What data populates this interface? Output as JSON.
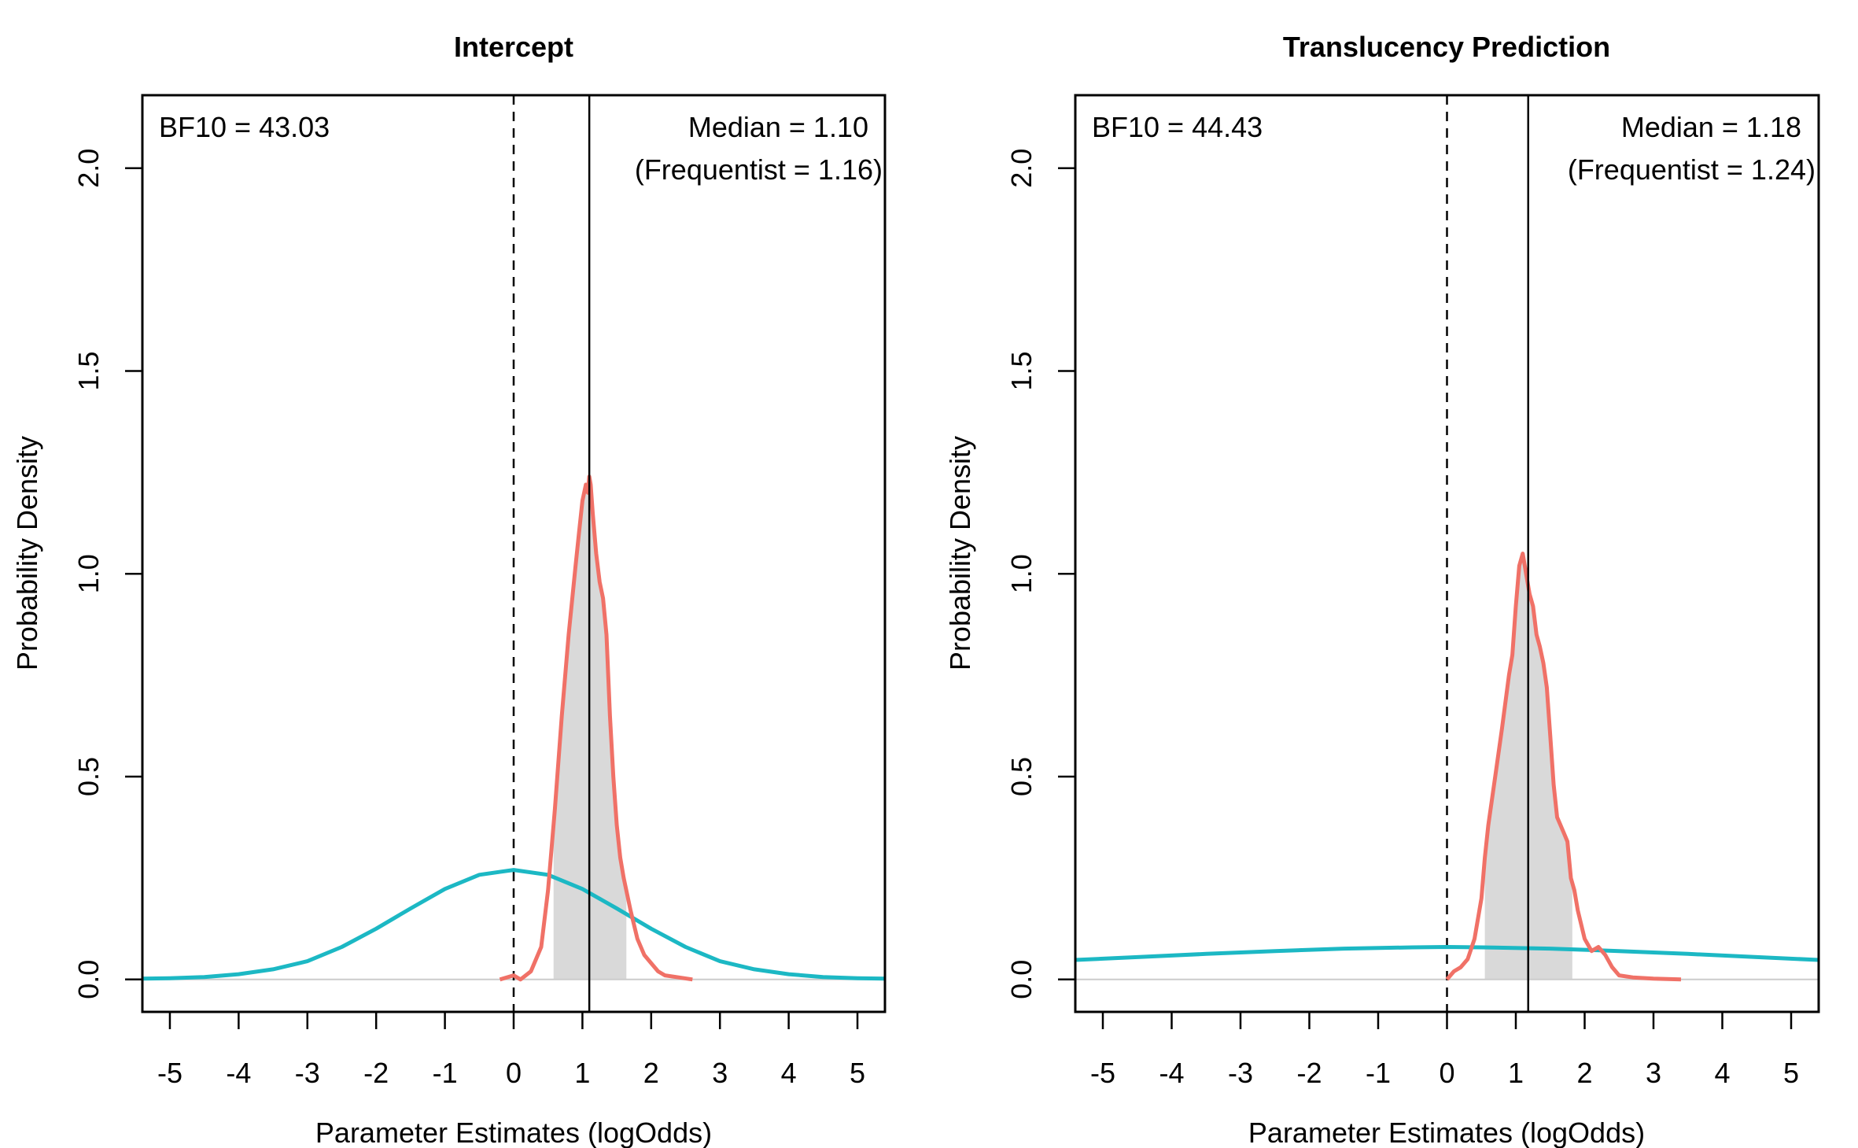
{
  "chart_data": [
    {
      "type": "line",
      "title": "Intercept",
      "xlabel": "Parameter Estimates (logOdds)",
      "ylabel": "Probability Density",
      "xlim": [
        -5.4,
        5.4
      ],
      "ylim": [
        -0.08,
        2.18
      ],
      "x_ticks": [
        -5,
        -4,
        -3,
        -2,
        -1,
        0,
        1,
        2,
        3,
        4,
        5
      ],
      "x_tick_labels": [
        "-5",
        "-4",
        "-3",
        "-2",
        "-1",
        "0",
        "1",
        "2",
        "3",
        "4",
        "5"
      ],
      "y_ticks": [
        0,
        0.5,
        1,
        1.5,
        2
      ],
      "y_tick_labels": [
        "0.0",
        "0.5",
        "1.0",
        "1.5",
        "2.0"
      ],
      "grid": false,
      "bf_label": "BF10 = 43.03",
      "median_label": "Median = 1.10",
      "frequentist_label": "(Frequentist = 1.16)",
      "median": 1.1,
      "reference_line": 0,
      "interval": [
        0.58,
        1.64
      ],
      "colors": {
        "posterior": "#F07167",
        "prior": "#1CB8C4",
        "interval_fill": "#D9D9D9"
      },
      "series": [
        {
          "role": "prior",
          "x": [
            -5.4,
            -5.0,
            -4.5,
            -4.0,
            -3.5,
            -3.0,
            -2.5,
            -2.0,
            -1.5,
            -1.0,
            -0.5,
            0.0,
            0.5,
            1.0,
            1.5,
            2.0,
            2.5,
            3.0,
            3.5,
            4.0,
            4.5,
            5.0,
            5.4
          ],
          "y": [
            0.002,
            0.003,
            0.006,
            0.013,
            0.025,
            0.045,
            0.08,
            0.125,
            0.175,
            0.223,
            0.258,
            0.27,
            0.258,
            0.223,
            0.175,
            0.125,
            0.08,
            0.045,
            0.025,
            0.013,
            0.006,
            0.003,
            0.002
          ]
        },
        {
          "role": "posterior",
          "x": [
            -0.2,
            0.0,
            0.1,
            0.25,
            0.4,
            0.5,
            0.6,
            0.7,
            0.8,
            0.9,
            0.95,
            1.0,
            1.05,
            1.08,
            1.1,
            1.12,
            1.15,
            1.2,
            1.25,
            1.3,
            1.35,
            1.4,
            1.45,
            1.5,
            1.55,
            1.6,
            1.7,
            1.8,
            1.9,
            2.0,
            2.1,
            2.2,
            2.4,
            2.6
          ],
          "y": [
            0.0,
            0.01,
            0.0,
            0.02,
            0.08,
            0.22,
            0.42,
            0.65,
            0.85,
            1.02,
            1.1,
            1.18,
            1.22,
            1.2,
            1.24,
            1.22,
            1.15,
            1.05,
            0.98,
            0.94,
            0.85,
            0.65,
            0.5,
            0.38,
            0.3,
            0.25,
            0.17,
            0.1,
            0.06,
            0.04,
            0.02,
            0.01,
            0.005,
            0.0
          ]
        }
      ]
    },
    {
      "type": "line",
      "title": "Translucency Prediction",
      "xlabel": "Parameter Estimates (logOdds)",
      "ylabel": "Probability Density",
      "xlim": [
        -5.4,
        5.4
      ],
      "ylim": [
        -0.08,
        2.18
      ],
      "x_ticks": [
        -5,
        -4,
        -3,
        -2,
        -1,
        0,
        1,
        2,
        3,
        4,
        5
      ],
      "x_tick_labels": [
        "-5",
        "-4",
        "-3",
        "-2",
        "-1",
        "0",
        "1",
        "2",
        "3",
        "4",
        "5"
      ],
      "y_ticks": [
        0,
        0.5,
        1,
        1.5,
        2
      ],
      "y_tick_labels": [
        "0.0",
        "0.5",
        "1.0",
        "1.5",
        "2.0"
      ],
      "grid": false,
      "bf_label": "BF10 = 44.43",
      "median_label": "Median = 1.18",
      "frequentist_label": "(Frequentist = 1.24)",
      "median": 1.18,
      "reference_line": 0,
      "interval": [
        0.55,
        1.82
      ],
      "colors": {
        "posterior": "#F07167",
        "prior": "#1CB8C4",
        "interval_fill": "#D9D9D9"
      },
      "series": [
        {
          "role": "prior",
          "x": [
            -5.4,
            -4.5,
            -3.5,
            -2.5,
            -1.5,
            -0.5,
            0.0,
            0.5,
            1.5,
            2.5,
            3.5,
            4.5,
            5.4
          ],
          "y": [
            0.048,
            0.055,
            0.063,
            0.07,
            0.076,
            0.079,
            0.08,
            0.079,
            0.076,
            0.07,
            0.063,
            0.055,
            0.048
          ]
        },
        {
          "role": "posterior",
          "x": [
            0.0,
            0.1,
            0.2,
            0.3,
            0.4,
            0.5,
            0.55,
            0.6,
            0.7,
            0.8,
            0.9,
            0.95,
            1.0,
            1.05,
            1.1,
            1.15,
            1.2,
            1.25,
            1.3,
            1.35,
            1.4,
            1.45,
            1.5,
            1.55,
            1.6,
            1.65,
            1.7,
            1.75,
            1.8,
            1.85,
            1.9,
            2.0,
            2.1,
            2.2,
            2.3,
            2.4,
            2.5,
            2.7,
            3.0,
            3.4
          ],
          "y": [
            0.0,
            0.02,
            0.03,
            0.05,
            0.1,
            0.2,
            0.3,
            0.38,
            0.5,
            0.62,
            0.75,
            0.8,
            0.92,
            1.02,
            1.05,
            1.0,
            0.95,
            0.92,
            0.85,
            0.82,
            0.78,
            0.72,
            0.6,
            0.48,
            0.4,
            0.38,
            0.36,
            0.34,
            0.25,
            0.22,
            0.17,
            0.1,
            0.07,
            0.08,
            0.06,
            0.03,
            0.01,
            0.005,
            0.002,
            0.0
          ]
        }
      ]
    }
  ]
}
